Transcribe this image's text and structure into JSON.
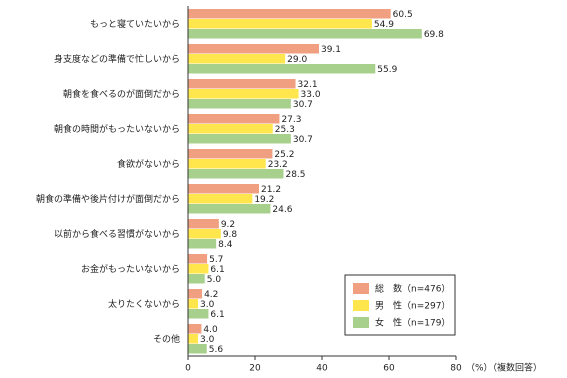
{
  "chart_data": {
    "type": "hbar",
    "categories": [
      "もっと寝ていたいから",
      "身支度などの準備で忙しいから",
      "朝食を食べるのが面倒だから",
      "朝食の時間がもったいないから",
      "食欲がないから",
      "朝食の準備や後片付けが面倒だから",
      "以前から食べる習慣がないから",
      "お金がもったいないから",
      "太りたくないから",
      "その他"
    ],
    "series": [
      {
        "name": "総　数（n=476）",
        "color": "#f0a080",
        "values": [
          60.5,
          39.1,
          32.1,
          27.3,
          25.2,
          21.2,
          9.2,
          5.7,
          4.2,
          4.0
        ],
        "value_labels": [
          "60.5",
          "39.1",
          "32.1",
          "27.3",
          "25.2",
          "21.2",
          "9.2",
          "5.7",
          "4.2",
          "4.0"
        ]
      },
      {
        "name": "男　性（n=297）",
        "color": "#ffe64d",
        "values": [
          54.9,
          29.0,
          33.0,
          25.3,
          23.2,
          19.2,
          9.8,
          6.1,
          3.0,
          3.0
        ],
        "value_labels": [
          "54.9",
          "29.0",
          "33.0",
          "25.3",
          "23.2",
          "19.2",
          "9.8",
          "6.1",
          "3.0",
          "3.0"
        ]
      },
      {
        "name": "女　性（n=179）",
        "color": "#a8d08d",
        "values": [
          69.8,
          55.9,
          30.7,
          30.7,
          28.5,
          24.6,
          8.4,
          5.0,
          6.1,
          5.6
        ],
        "value_labels": [
          "69.8",
          "55.9",
          "30.7",
          "30.7",
          "28.5",
          "24.6",
          "8.4",
          "5.0",
          "6.1",
          "5.6"
        ]
      }
    ],
    "xlim": [
      0,
      80
    ],
    "xticks": [
      0,
      20,
      40,
      60,
      80
    ],
    "xlabel": "（%）（複数回答）",
    "legend": "lower-right"
  }
}
